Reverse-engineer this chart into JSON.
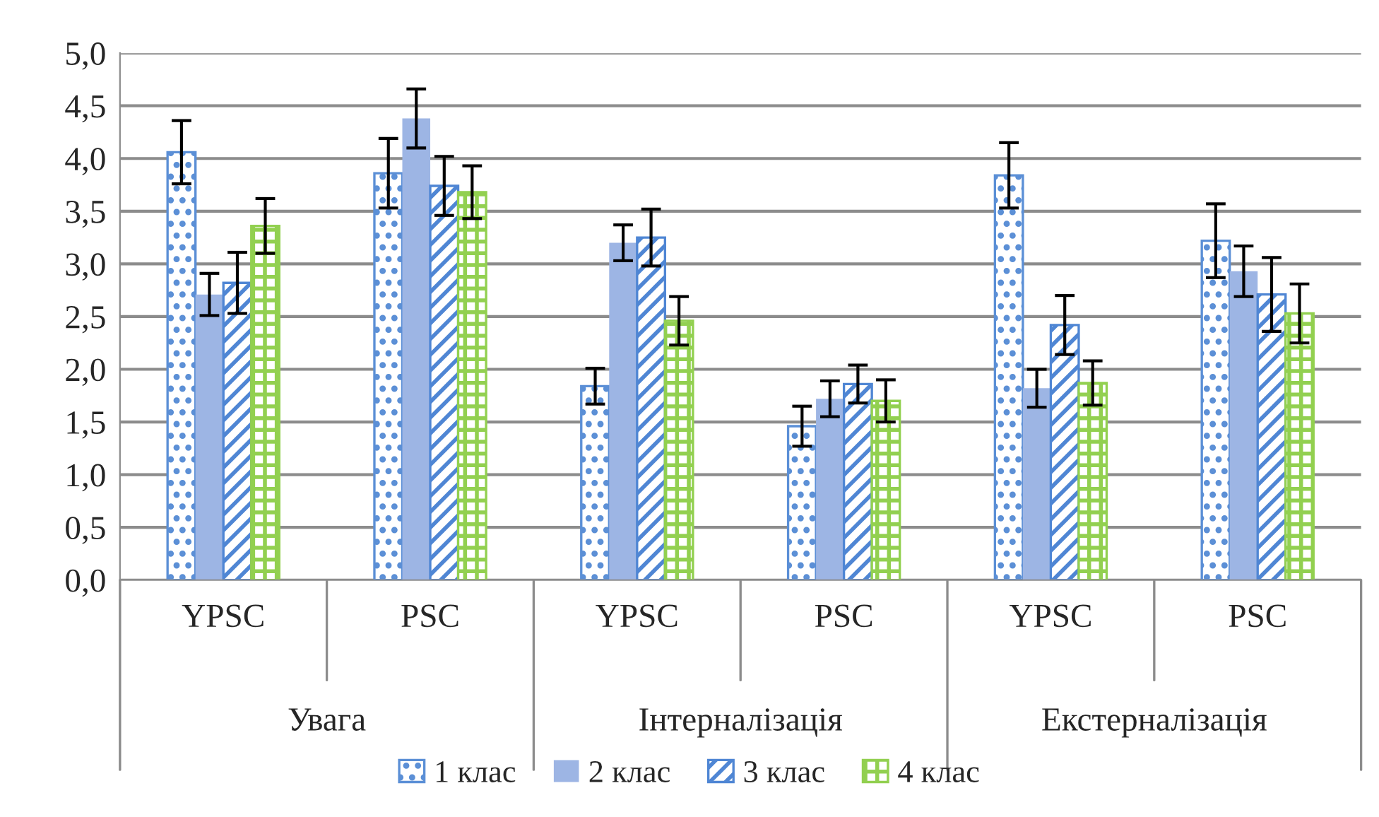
{
  "chart_data": {
    "type": "bar",
    "categories": [
      "YPSC",
      "PSC",
      "YPSC",
      "PSC",
      "YPSC",
      "PSC"
    ],
    "annotations": [
      "Увага",
      "Інтерналізація",
      "Екстерналізація"
    ],
    "series": [
      {
        "name": "1 клас",
        "color": "#5b8fd6",
        "values": [
          4.06,
          3.86,
          1.84,
          1.46,
          3.84,
          3.22
        ],
        "errors": [
          0.3,
          0.33,
          0.17,
          0.19,
          0.31,
          0.35
        ]
      },
      {
        "name": "2 клас",
        "color": "#9db5e4",
        "values": [
          2.71,
          4.38,
          3.2,
          1.72,
          1.82,
          2.93
        ],
        "errors": [
          0.2,
          0.28,
          0.17,
          0.17,
          0.18,
          0.24
        ]
      },
      {
        "name": "3 клас",
        "color": "#4f86d4",
        "values": [
          2.82,
          3.74,
          3.25,
          1.86,
          2.42,
          2.71
        ],
        "errors": [
          0.29,
          0.28,
          0.27,
          0.18,
          0.28,
          0.35
        ]
      },
      {
        "name": "4 клас",
        "color": "#92d050",
        "values": [
          3.36,
          3.68,
          2.46,
          1.7,
          1.87,
          2.53
        ],
        "errors": [
          0.26,
          0.25,
          0.23,
          0.2,
          0.21,
          0.28
        ]
      }
    ],
    "ylim": [
      0,
      5
    ],
    "yticks": [
      {
        "value": 0,
        "label": "0,0"
      },
      {
        "value": 0.5,
        "label": "0,5"
      },
      {
        "value": 1,
        "label": "1,0"
      },
      {
        "value": 1.5,
        "label": "1,5"
      },
      {
        "value": 2,
        "label": "2,0"
      },
      {
        "value": 2.5,
        "label": "2,5"
      },
      {
        "value": 3,
        "label": "3,0"
      },
      {
        "value": 3.5,
        "label": "3,5"
      },
      {
        "value": 4,
        "label": "4,0"
      },
      {
        "value": 4.5,
        "label": "4,5"
      },
      {
        "value": 5,
        "label": "5,0"
      }
    ],
    "grid": "y",
    "legend": "bottom"
  }
}
